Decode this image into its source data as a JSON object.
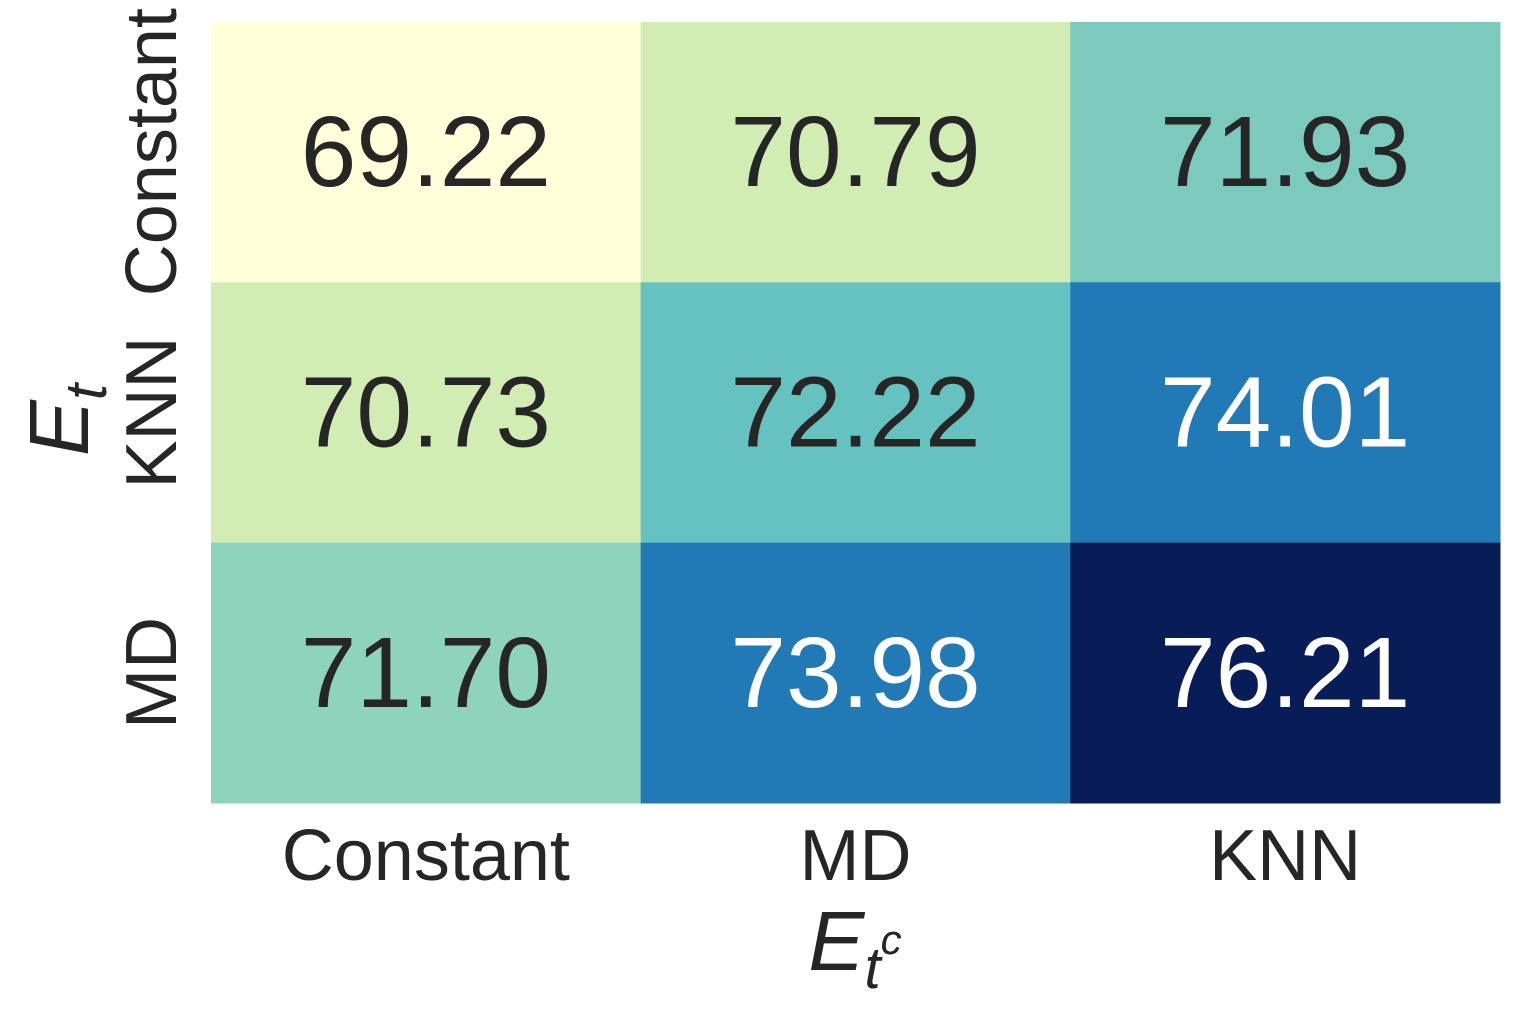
{
  "chart_data": {
    "type": "heatmap",
    "x_categories": [
      "Constant",
      "MD",
      "KNN"
    ],
    "y_categories": [
      "Constant",
      "KNN",
      "MD"
    ],
    "values": [
      [
        69.22,
        70.79,
        71.93
      ],
      [
        70.73,
        72.22,
        74.01
      ],
      [
        71.7,
        73.98,
        76.21
      ]
    ],
    "value_labels": [
      [
        "69.22",
        "70.79",
        "71.93"
      ],
      [
        "70.73",
        "72.22",
        "74.01"
      ],
      [
        "71.70",
        "73.98",
        "76.21"
      ]
    ],
    "cell_colors": [
      [
        "#ffffd9",
        "#d2edb3",
        "#7bcabd"
      ],
      [
        "#d2edb3",
        "#65c2c0",
        "#2179b5"
      ],
      [
        "#8ed3bb",
        "#2179b5",
        "#081d58"
      ]
    ],
    "text_colors": [
      [
        "#262626",
        "#262626",
        "#262626"
      ],
      [
        "#262626",
        "#262626",
        "#ffffff"
      ],
      [
        "#262626",
        "#ffffff",
        "#ffffff"
      ]
    ],
    "colormap": "YlGnBu",
    "xlabel": {
      "base": "E",
      "sub": "t",
      "sup": "c"
    },
    "ylabel": {
      "base": "E",
      "sub": "t"
    },
    "colorbar": false,
    "grid": false
  }
}
